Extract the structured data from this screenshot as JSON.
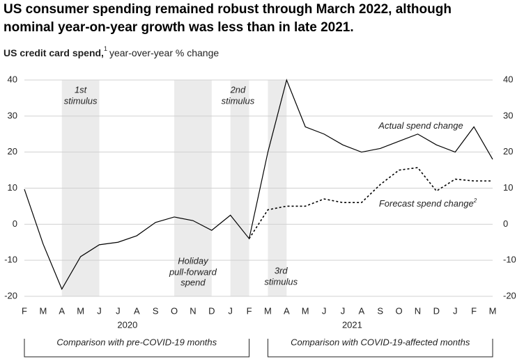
{
  "chart_data": {
    "type": "line",
    "title_lines": [
      "US consumer spending remained robust through March 2022, although",
      "nominal year-on-year growth was less than in late 2021."
    ],
    "subtitle_bold": "US credit card spend,",
    "subtitle_note": "1",
    "subtitle_rest": "year-over-year % change",
    "categories": [
      "F",
      "M",
      "A",
      "M",
      "J",
      "J",
      "A",
      "S",
      "O",
      "N",
      "D",
      "J",
      "F",
      "M",
      "A",
      "M",
      "J",
      "J",
      "A",
      "S",
      "O",
      "N",
      "D",
      "J",
      "F",
      "M"
    ],
    "year_labels": [
      "2020",
      "2021"
    ],
    "series": [
      {
        "name": "Actual spend change",
        "color": "#000000",
        "dash": false,
        "values": [
          9.7,
          -5.5,
          -18,
          -9,
          -5.7,
          -5,
          -3.2,
          0.5,
          2,
          1,
          -1.7,
          2.5,
          -4,
          20,
          40,
          27,
          25,
          22,
          20,
          21,
          23,
          25,
          22,
          20,
          27,
          18
        ]
      },
      {
        "name": "Forecast spend change",
        "note": "2",
        "color": "#000000",
        "dash": true,
        "values": [
          null,
          null,
          null,
          null,
          null,
          null,
          null,
          null,
          null,
          null,
          null,
          null,
          -4,
          4,
          5,
          5,
          7,
          6,
          6,
          11,
          15,
          15.7,
          9.2,
          12.5,
          12,
          12
        ]
      }
    ],
    "period_labels": [
      [
        "1st",
        "stimulus"
      ],
      [
        "Holiday",
        "pull-forward",
        "spend"
      ],
      [
        "2nd",
        "stimulus"
      ],
      [
        "3rd",
        "stimulus"
      ]
    ],
    "brackets": [
      "Comparison with pre-COVID-19 months",
      "Comparison with COVID-19-affected months"
    ],
    "ylim": [
      -20,
      40
    ],
    "yticks": [
      -20,
      -10,
      0,
      10,
      20,
      30,
      40
    ],
    "grid": true
  }
}
